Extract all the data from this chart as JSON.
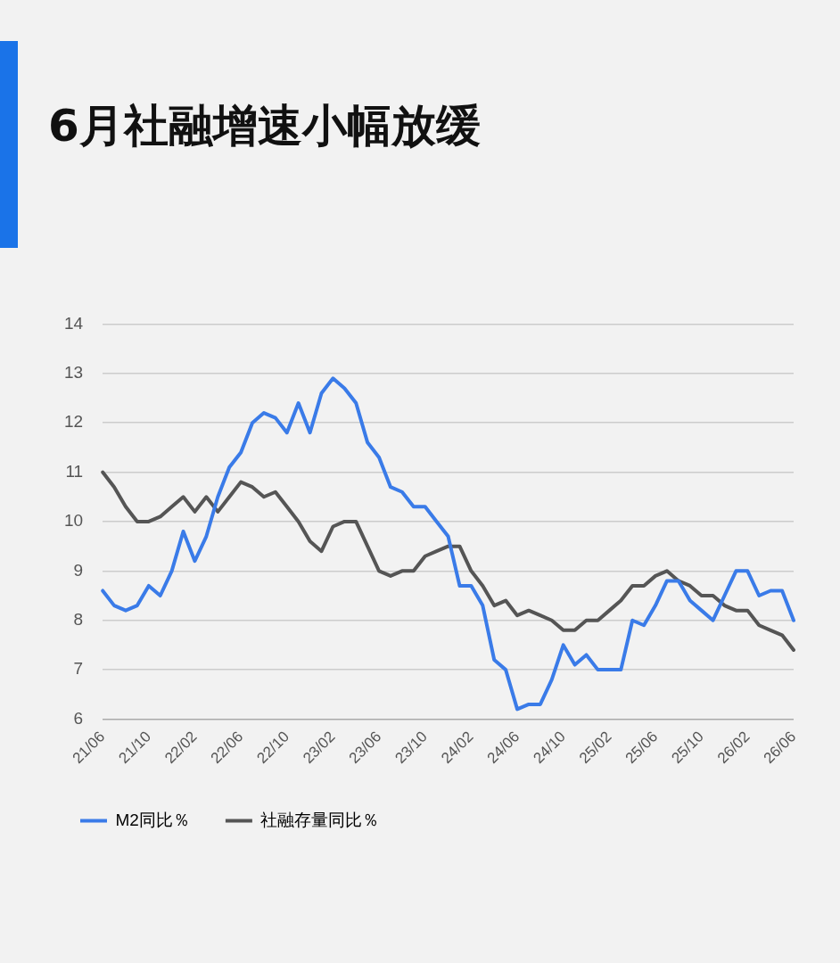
{
  "chart_data": {
    "type": "line",
    "title": "6月社融增速小幅放缓",
    "categories": [
      "21/06",
      null,
      null,
      null,
      "21/10",
      null,
      null,
      null,
      "22/02",
      null,
      null,
      null,
      "22/06",
      null,
      null,
      null,
      "22/10",
      null,
      null,
      null,
      "23/02",
      null,
      null,
      null,
      "23/06",
      null,
      null,
      null,
      "23/10",
      null,
      null,
      null,
      "24/02",
      null,
      null,
      null,
      "24/06",
      null,
      null,
      null,
      "24/10",
      null,
      null,
      null,
      "25/02",
      null,
      null,
      null,
      "25/06",
      null,
      null,
      null,
      "25/10",
      null,
      null,
      null,
      "26/02",
      null,
      null,
      null,
      "26/06"
    ],
    "series": [
      {
        "name": "M2同比％",
        "color": "#3a7be8",
        "values": [
          8.6,
          8.3,
          8.2,
          8.3,
          8.7,
          8.5,
          9.0,
          9.8,
          9.2,
          9.7,
          10.5,
          11.1,
          11.4,
          12.0,
          12.2,
          12.1,
          11.8,
          12.4,
          11.8,
          12.6,
          12.9,
          12.7,
          12.4,
          11.6,
          11.3,
          10.7,
          10.6,
          10.3,
          10.3,
          10.0,
          9.7,
          8.7,
          8.7,
          8.3,
          7.2,
          7.0,
          6.2,
          6.3,
          6.3,
          6.8,
          7.5,
          7.1,
          7.3,
          7.0,
          7.0,
          7.0,
          8.0,
          7.9,
          8.3,
          8.8,
          8.8,
          8.4,
          8.2,
          8.0,
          8.5,
          9.0,
          9.0,
          8.5,
          8.6,
          8.6,
          8.0
        ]
      },
      {
        "name": "社融存量同比％",
        "color": "#555555",
        "values": [
          11.0,
          10.7,
          10.3,
          10.0,
          10.0,
          10.1,
          10.3,
          10.5,
          10.2,
          10.5,
          10.2,
          10.5,
          10.8,
          10.7,
          10.5,
          10.6,
          10.3,
          10.0,
          9.6,
          9.4,
          9.9,
          10.0,
          10.0,
          9.5,
          9.0,
          8.9,
          9.0,
          9.0,
          9.3,
          9.4,
          9.5,
          9.5,
          9.0,
          8.7,
          8.3,
          8.4,
          8.1,
          8.2,
          8.1,
          8.0,
          7.8,
          7.8,
          8.0,
          8.0,
          8.2,
          8.4,
          8.7,
          8.7,
          8.9,
          9.0,
          8.8,
          8.7,
          8.5,
          8.5,
          8.3,
          8.2,
          8.2,
          7.9,
          7.8,
          7.7,
          7.4
        ]
      }
    ],
    "ylim": [
      6,
      14
    ],
    "yticks": [
      6,
      7,
      8,
      9,
      10,
      11,
      12,
      13,
      14
    ],
    "grid": "y",
    "legend": "bottom left",
    "marker": "none",
    "line_style": "solid"
  }
}
